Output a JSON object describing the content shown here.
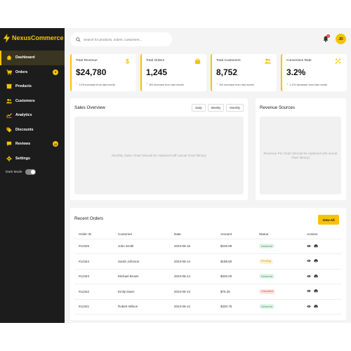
{
  "brand": {
    "name": "NexusCommerce"
  },
  "colors": {
    "accent": "#f5c400",
    "sidebar": "#1c1c1c",
    "danger": "#e53935",
    "success": "#2e9e55"
  },
  "sidebar": {
    "items": [
      {
        "label": "Dashboard",
        "icon": "home-icon",
        "active": true,
        "badge": ""
      },
      {
        "label": "Orders",
        "icon": "cart-icon",
        "active": false,
        "badge": "5"
      },
      {
        "label": "Products",
        "icon": "box-icon",
        "active": false,
        "badge": ""
      },
      {
        "label": "Customers",
        "icon": "users-icon",
        "active": false,
        "badge": ""
      },
      {
        "label": "Analytics",
        "icon": "chart-line-icon",
        "active": false,
        "badge": ""
      },
      {
        "label": "Discounts",
        "icon": "tag-icon",
        "active": false,
        "badge": ""
      },
      {
        "label": "Reviews",
        "icon": "comment-icon",
        "active": false,
        "badge": "12"
      },
      {
        "label": "Settings",
        "icon": "gear-icon",
        "active": false,
        "badge": ""
      }
    ],
    "dark_mode_label": "Dark Mode",
    "dark_mode_on": false
  },
  "header": {
    "search_placeholder": "Search for products, orders, customers...",
    "notification_count": "3",
    "avatar_initials": "JD"
  },
  "stats": [
    {
      "title": "Total Revenue",
      "value": "$24,780",
      "change": "12% increase from last month",
      "direction": "up",
      "icon": "dollar-icon"
    },
    {
      "title": "Total Orders",
      "value": "1,245",
      "change": "8% increase from last month",
      "direction": "up",
      "icon": "bag-icon"
    },
    {
      "title": "Total Customers",
      "value": "8,752",
      "change": "5% increase from last month",
      "direction": "up",
      "icon": "users-icon"
    },
    {
      "title": "Conversion Rate",
      "value": "3.2%",
      "change": "1.2% decrease from last month",
      "direction": "down",
      "icon": "percent-icon"
    }
  ],
  "sales_overview": {
    "title": "Sales Overview",
    "buttons": [
      "Daily",
      "Weekly",
      "Monthly"
    ],
    "placeholder": "Monthly Sales Chart (Would be replaced with actual chart library)"
  },
  "revenue_sources": {
    "title": "Revenue Sources",
    "placeholder": "Revenue Pie Chart (Would be replaced with actual chart library)"
  },
  "orders": {
    "title": "Recent Orders",
    "view_all": "View All",
    "columns": [
      "Order ID",
      "Customer",
      "Date",
      "Amount",
      "Status",
      "Actions"
    ],
    "rows": [
      {
        "id": "#12345",
        "customer": "John Smith",
        "date": "2023-06-15",
        "amount": "$245.99",
        "status": "Delivered",
        "status_color": "#2e9e55",
        "status_bg": "#e3f5e9"
      },
      {
        "id": "#12344",
        "customer": "Sarah Johnson",
        "date": "2023-06-14",
        "amount": "$189.50",
        "status": "Pending",
        "status_color": "#d99a00",
        "status_bg": "#fdf3d4"
      },
      {
        "id": "#12343",
        "customer": "Michael Brown",
        "date": "2023-06-14",
        "amount": "$320.00",
        "status": "Delivered",
        "status_color": "#2e9e55",
        "status_bg": "#e3f5e9"
      },
      {
        "id": "#12342",
        "customer": "Emily Davis",
        "date": "2023-06-13",
        "amount": "$75.25",
        "status": "Cancelled",
        "status_color": "#e53935",
        "status_bg": "#fde4e3"
      },
      {
        "id": "#12341",
        "customer": "Robert Wilson",
        "date": "2023-06-12",
        "amount": "$420.75",
        "status": "Delivered",
        "status_color": "#2e9e55",
        "status_bg": "#e3f5e9"
      }
    ]
  }
}
